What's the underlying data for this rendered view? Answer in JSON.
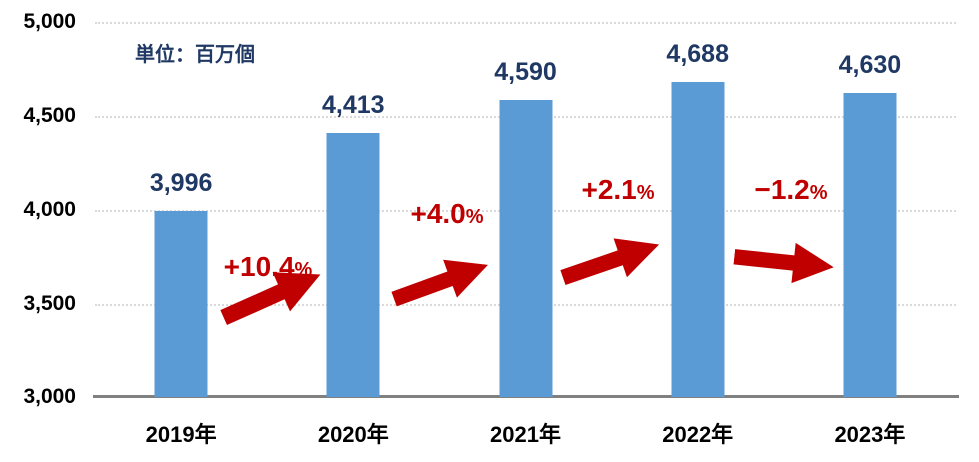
{
  "chart_data": {
    "type": "bar",
    "title": "",
    "unit_label": "単位：百万個",
    "categories": [
      "2019年",
      "2020年",
      "2021年",
      "2022年",
      "2023年"
    ],
    "values": [
      3996,
      4413,
      4590,
      4688,
      4630
    ],
    "value_labels": [
      "3,996",
      "4,413",
      "4,590",
      "4,688",
      "4,630"
    ],
    "yoy": [
      {
        "label": "+10.4",
        "unit": "%",
        "direction": "up"
      },
      {
        "label": "+4.0",
        "unit": "%",
        "direction": "up"
      },
      {
        "label": "+2.1",
        "unit": "%",
        "direction": "up"
      },
      {
        "label": "−1.2",
        "unit": "%",
        "direction": "down"
      }
    ],
    "y_ticks": [
      "5,000",
      "4,500",
      "4,000",
      "3,500",
      "3,000"
    ],
    "ylim": [
      3000,
      5000
    ],
    "grid": true,
    "legend": "none",
    "colors": {
      "bar": "#5B9BD5",
      "value_label": "#1F3864",
      "change_label": "#C00000",
      "arrow": "#C00000",
      "axis_text": "#000000",
      "gridline": "#D9D9D9",
      "axis_line": "#808080",
      "background": "#FFFFFF"
    }
  }
}
